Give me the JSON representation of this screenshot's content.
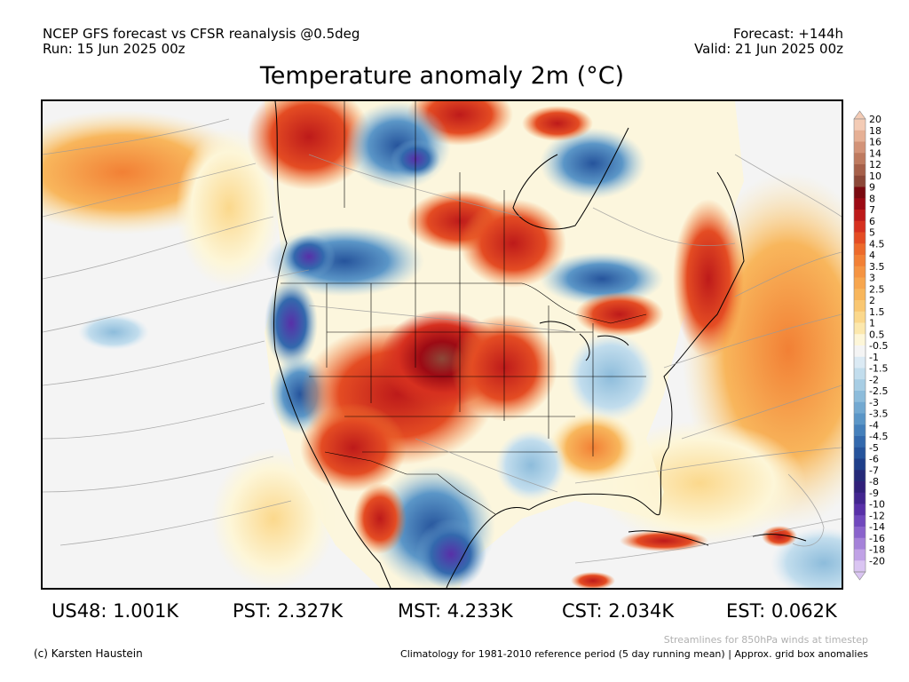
{
  "header": {
    "line1_left": "NCEP GFS forecast vs CFSR reanalysis @0.5deg",
    "line2_left": "Run: 15 Jun 2025 00z",
    "line1_right": "Forecast: +144h",
    "line2_right": "Valid: 21 Jun 2025 00z"
  },
  "title": "Temperature anomaly 2m (°C)",
  "colorbar": {
    "labels": [
      "20",
      "18",
      "16",
      "14",
      "12",
      "10",
      "9",
      "8",
      "7",
      "6",
      "5",
      "4.5",
      "4",
      "3.5",
      "3",
      "2.5",
      "2",
      "1.5",
      "1",
      "0.5",
      "-0.5",
      "-1",
      "-1.5",
      "-2",
      "-2.5",
      "-3",
      "-3.5",
      "-4",
      "-4.5",
      "-5",
      "-6",
      "-7",
      "-8",
      "-9",
      "-10",
      "-12",
      "-14",
      "-16",
      "-18",
      "-20"
    ],
    "colors": [
      "#f3cbb5",
      "#e6b095",
      "#d39378",
      "#be7a5f",
      "#a6604a",
      "#8c4838",
      "#7a0a10",
      "#9c0a14",
      "#bd1a1a",
      "#d6301f",
      "#e44c23",
      "#ed6a2b",
      "#f28035",
      "#f59442",
      "#f7a64e",
      "#f8b65c",
      "#f9c772",
      "#fbd88c",
      "#fce8ad",
      "#fdf6d8",
      "#f4f4f4",
      "#dbeaf4",
      "#c2dded",
      "#a7cde4",
      "#8dbcdb",
      "#73a9d1",
      "#5b96c7",
      "#4580bb",
      "#3369ad",
      "#26549c",
      "#1f3f8a",
      "#252a78",
      "#31207a",
      "#42258f",
      "#5830a8",
      "#7048bd",
      "#8a63cc",
      "#a582d9",
      "#c0a2e6",
      "#dac5f2"
    ]
  },
  "stats": [
    {
      "label": "US48:",
      "value": "1.001K"
    },
    {
      "label": "PST:",
      "value": "2.327K"
    },
    {
      "label": "MST:",
      "value": "4.233K"
    },
    {
      "label": "CST:",
      "value": "2.034K"
    },
    {
      "label": "EST:",
      "value": "0.062K"
    }
  ],
  "footer": {
    "streamline_note": "Streamlines for 850hPa winds at timestep",
    "copyright": "(c) Karsten Haustein",
    "climatology_note": "Climatology for 1981-2010 reference period (5 day running mean) | Approx. grid box anomalies"
  }
}
